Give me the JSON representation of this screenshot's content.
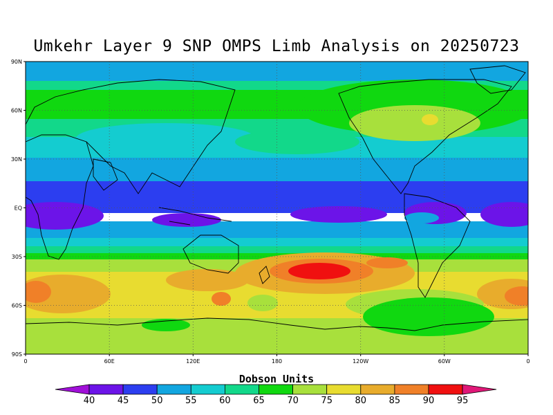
{
  "title": "Umkehr Layer 9 SNP OMPS Limb Analysis on 20250723",
  "colorbar": {
    "title": "Dobson Units",
    "levels": [
      "40",
      "45",
      "50",
      "55",
      "60",
      "65",
      "70",
      "75",
      "80",
      "85",
      "90",
      "95"
    ],
    "colors": [
      "#a010d8",
      "#6c14e8",
      "#2c3ef0",
      "#12a6e0",
      "#14ccd0",
      "#12d88a",
      "#10d810",
      "#a8e03c",
      "#e8dc30",
      "#e8ac2c",
      "#f08028",
      "#f01010",
      "#e01878"
    ]
  },
  "axes": {
    "lat_labels": [
      "90N",
      "60N",
      "30N",
      "EQ",
      "30S",
      "60S",
      "90S"
    ],
    "lon_labels": [
      "0",
      "60E",
      "120E",
      "180",
      "120W",
      "60W",
      "0"
    ]
  },
  "map_data": {
    "type": "filled-contour",
    "variable": "Umkehr Layer 9 ozone",
    "units": "Dobson Units",
    "grid_lines": true,
    "zonal_bands": [
      {
        "lat_range": [
          90,
          74
        ],
        "value_range": [
          55,
          60
        ]
      },
      {
        "lat_range": [
          74,
          66
        ],
        "value_range": [
          65,
          70
        ]
      },
      {
        "lat_range": [
          66,
          50
        ],
        "value_range": [
          70,
          75
        ]
      },
      {
        "lat_range": [
          50,
          37
        ],
        "value_range": [
          60,
          65
        ]
      },
      {
        "lat_range": [
          37,
          23
        ],
        "value_range": [
          55,
          60
        ]
      },
      {
        "lat_range": [
          23,
          14
        ],
        "value_range": [
          50,
          55
        ]
      },
      {
        "lat_range": [
          14,
          4
        ],
        "value_range": [
          45,
          50
        ]
      },
      {
        "lat_range": [
          4,
          -14
        ],
        "value_range": [
          40,
          45
        ]
      },
      {
        "lat_range": [
          -14,
          -22
        ],
        "value_range": [
          50,
          55
        ]
      },
      {
        "lat_range": [
          -22,
          -30
        ],
        "value_range": [
          60,
          65
        ]
      },
      {
        "lat_range": [
          -30,
          -40
        ],
        "value_range": [
          75,
          80
        ]
      },
      {
        "lat_range": [
          -40,
          -56
        ],
        "value_range": [
          80,
          85
        ]
      },
      {
        "lat_range": [
          -56,
          -66
        ],
        "value_range": [
          75,
          80
        ]
      },
      {
        "lat_range": [
          -66,
          -90
        ],
        "value_range": [
          70,
          75
        ]
      }
    ]
  }
}
